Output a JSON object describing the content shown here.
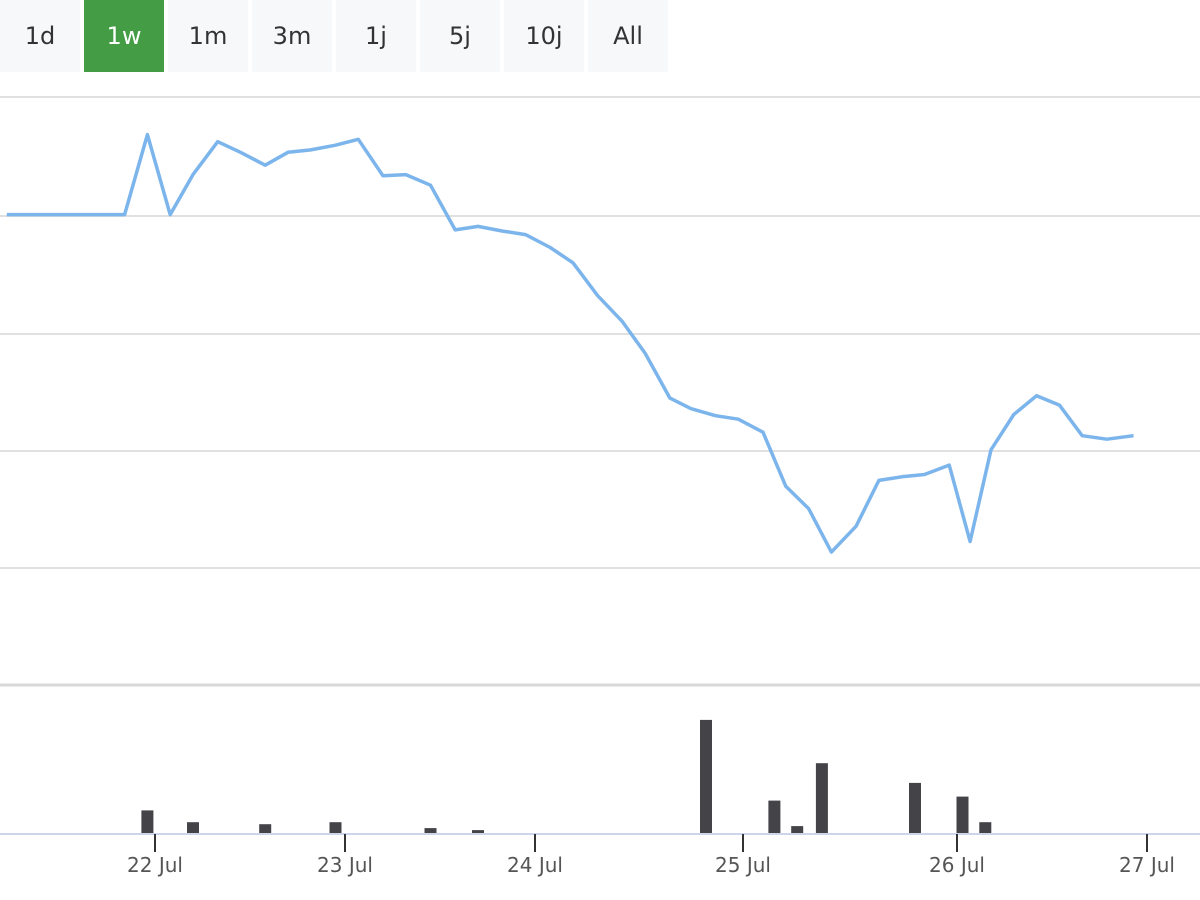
{
  "range_selector": {
    "buttons": [
      "1d",
      "1w",
      "1m",
      "3m",
      "1j",
      "5j",
      "10j",
      "All"
    ],
    "active": "1w"
  },
  "colors": {
    "line": "#7cb5ec",
    "volume_bar": "#434348",
    "grid": "#e0e0e0",
    "active_button": "#449d44",
    "button": "#f7f8fa"
  },
  "chart_data": [
    {
      "type": "line",
      "title": "",
      "xlabel": "",
      "ylabel": "",
      "x_tick_labels": [
        "22 Jul",
        "23 Jul",
        "24 Jul",
        "25 Jul",
        "26 Jul",
        "27 Jul"
      ],
      "y_tick_labels": [],
      "grid": true,
      "xlim": [
        -0.8,
        5.15
      ],
      "ylim": [
        -0.2,
        4.8
      ],
      "series": [
        {
          "x": [
            -0.78,
            -0.16,
            -0.04,
            0.08,
            0.2,
            0.33,
            0.45,
            0.58,
            0.7,
            0.82,
            0.95,
            1.07,
            1.2,
            1.32,
            1.45,
            1.58,
            1.7,
            1.83,
            1.95,
            2.08,
            2.2,
            2.33,
            2.46,
            2.58,
            2.71,
            2.82,
            2.95,
            3.07,
            3.2,
            3.32,
            3.44,
            3.56,
            3.69,
            3.81,
            3.93,
            4.05,
            4.18,
            4.29,
            4.4,
            4.52,
            4.64,
            4.76,
            4.88,
            5.01,
            5.15
          ],
          "y": [
            3.8,
            3.8,
            4.48,
            3.8,
            4.14,
            4.42,
            4.33,
            4.22,
            4.33,
            4.35,
            4.39,
            4.44,
            4.13,
            4.14,
            4.05,
            3.67,
            3.7,
            3.66,
            3.63,
            3.52,
            3.39,
            3.11,
            2.89,
            2.62,
            2.24,
            2.15,
            2.09,
            2.06,
            1.95,
            1.49,
            1.3,
            0.93,
            1.15,
            1.54,
            1.57,
            1.59,
            1.67,
            1.02,
            1.8,
            2.1,
            2.26,
            2.18,
            1.92,
            1.89,
            1.92
          ]
        }
      ]
    },
    {
      "type": "bar",
      "title": "",
      "xlabel": "",
      "ylabel": "",
      "x_tick_labels": [],
      "y_tick_labels": [],
      "xlim": [
        -0.8,
        5.15
      ],
      "ylim": [
        0,
        120
      ],
      "series": [
        {
          "x": [
            -0.04,
            0.2,
            0.58,
            0.95,
            1.45,
            1.7,
            2.9,
            3.26,
            3.38,
            3.51,
            4.0,
            4.25,
            4.37
          ],
          "y": [
            24,
            12,
            10,
            12,
            6,
            4,
            116,
            34,
            8,
            72,
            52,
            38,
            12
          ]
        }
      ]
    }
  ]
}
